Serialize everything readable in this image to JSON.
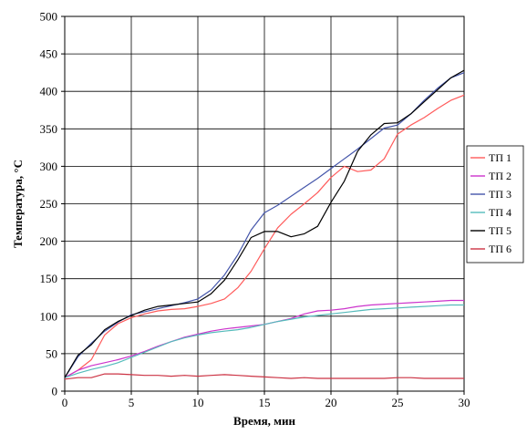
{
  "chart_data": {
    "type": "line",
    "title": "",
    "xlabel": "Время, мин",
    "ylabel": "Температура, °С",
    "xlim": [
      0,
      30
    ],
    "ylim": [
      0,
      500
    ],
    "x_ticks": [
      0,
      5,
      10,
      15,
      20,
      25,
      30
    ],
    "y_ticks": [
      0,
      50,
      100,
      150,
      200,
      250,
      300,
      350,
      400,
      450,
      500
    ],
    "grid": true,
    "legend_position": "right",
    "series": [
      {
        "name": "ТП 1",
        "color": "#ff5a5a",
        "points": [
          [
            0,
            18
          ],
          [
            1,
            28
          ],
          [
            2,
            42
          ],
          [
            3,
            75
          ],
          [
            4,
            90
          ],
          [
            5,
            98
          ],
          [
            6,
            103
          ],
          [
            7,
            107
          ],
          [
            8,
            109
          ],
          [
            9,
            110
          ],
          [
            10,
            113
          ],
          [
            11,
            117
          ],
          [
            12,
            123
          ],
          [
            13,
            138
          ],
          [
            14,
            160
          ],
          [
            15,
            190
          ],
          [
            16,
            218
          ],
          [
            17,
            236
          ],
          [
            18,
            250
          ],
          [
            19,
            265
          ],
          [
            20,
            285
          ],
          [
            21,
            300
          ],
          [
            22,
            293
          ],
          [
            23,
            295
          ],
          [
            24,
            310
          ],
          [
            25,
            343
          ],
          [
            26,
            355
          ],
          [
            27,
            365
          ],
          [
            28,
            377
          ],
          [
            29,
            388
          ],
          [
            30,
            395
          ]
        ]
      },
      {
        "name": "ТП 2",
        "color": "#cc33cc",
        "points": [
          [
            0,
            18
          ],
          [
            1,
            28
          ],
          [
            2,
            34
          ],
          [
            3,
            38
          ],
          [
            4,
            42
          ],
          [
            5,
            47
          ],
          [
            6,
            53
          ],
          [
            7,
            60
          ],
          [
            8,
            66
          ],
          [
            9,
            72
          ],
          [
            10,
            76
          ],
          [
            11,
            80
          ],
          [
            12,
            83
          ],
          [
            13,
            85
          ],
          [
            14,
            87
          ],
          [
            15,
            89
          ],
          [
            16,
            93
          ],
          [
            17,
            97
          ],
          [
            18,
            103
          ],
          [
            19,
            107
          ],
          [
            20,
            108
          ],
          [
            21,
            110
          ],
          [
            22,
            113
          ],
          [
            23,
            115
          ],
          [
            24,
            116
          ],
          [
            25,
            117
          ],
          [
            26,
            118
          ],
          [
            27,
            119
          ],
          [
            28,
            120
          ],
          [
            29,
            121
          ],
          [
            30,
            121
          ]
        ]
      },
      {
        "name": "ТП 3",
        "color": "#4455aa",
        "points": [
          [
            0,
            18
          ],
          [
            1,
            46
          ],
          [
            2,
            64
          ],
          [
            3,
            80
          ],
          [
            4,
            92
          ],
          [
            5,
            102
          ],
          [
            6,
            106
          ],
          [
            7,
            110
          ],
          [
            8,
            114
          ],
          [
            9,
            118
          ],
          [
            10,
            123
          ],
          [
            11,
            135
          ],
          [
            12,
            155
          ],
          [
            13,
            182
          ],
          [
            14,
            215
          ],
          [
            15,
            238
          ],
          [
            16,
            248
          ],
          [
            17,
            260
          ],
          [
            18,
            272
          ],
          [
            19,
            284
          ],
          [
            20,
            297
          ],
          [
            21,
            310
          ],
          [
            22,
            323
          ],
          [
            23,
            337
          ],
          [
            24,
            351
          ],
          [
            25,
            355
          ],
          [
            26,
            370
          ],
          [
            27,
            388
          ],
          [
            28,
            404
          ],
          [
            29,
            418
          ],
          [
            30,
            425
          ]
        ]
      },
      {
        "name": "ТП 4",
        "color": "#55bbbb",
        "points": [
          [
            0,
            18
          ],
          [
            1,
            24
          ],
          [
            2,
            29
          ],
          [
            3,
            33
          ],
          [
            4,
            38
          ],
          [
            5,
            45
          ],
          [
            6,
            52
          ],
          [
            7,
            59
          ],
          [
            8,
            66
          ],
          [
            9,
            71
          ],
          [
            10,
            75
          ],
          [
            11,
            78
          ],
          [
            12,
            80
          ],
          [
            13,
            82
          ],
          [
            14,
            85
          ],
          [
            15,
            89
          ],
          [
            16,
            93
          ],
          [
            17,
            96
          ],
          [
            18,
            99
          ],
          [
            19,
            101
          ],
          [
            20,
            103
          ],
          [
            21,
            105
          ],
          [
            22,
            107
          ],
          [
            23,
            109
          ],
          [
            24,
            110
          ],
          [
            25,
            111
          ],
          [
            26,
            112
          ],
          [
            27,
            113
          ],
          [
            28,
            114
          ],
          [
            29,
            115
          ],
          [
            30,
            115
          ]
        ]
      },
      {
        "name": "ТП 5",
        "color": "#000000",
        "points": [
          [
            0,
            18
          ],
          [
            1,
            48
          ],
          [
            2,
            62
          ],
          [
            3,
            82
          ],
          [
            4,
            93
          ],
          [
            5,
            101
          ],
          [
            6,
            108
          ],
          [
            7,
            113
          ],
          [
            8,
            115
          ],
          [
            9,
            117
          ],
          [
            10,
            119
          ],
          [
            11,
            130
          ],
          [
            12,
            148
          ],
          [
            13,
            175
          ],
          [
            14,
            205
          ],
          [
            15,
            213
          ],
          [
            16,
            213
          ],
          [
            17,
            206
          ],
          [
            18,
            210
          ],
          [
            19,
            220
          ],
          [
            20,
            252
          ],
          [
            21,
            280
          ],
          [
            22,
            320
          ],
          [
            23,
            342
          ],
          [
            24,
            357
          ],
          [
            25,
            358
          ],
          [
            26,
            370
          ],
          [
            27,
            386
          ],
          [
            28,
            402
          ],
          [
            29,
            418
          ],
          [
            30,
            428
          ]
        ]
      },
      {
        "name": "ТП 6",
        "color": "#cc3344",
        "points": [
          [
            0,
            16
          ],
          [
            1,
            18
          ],
          [
            2,
            18
          ],
          [
            3,
            23
          ],
          [
            4,
            23
          ],
          [
            5,
            22
          ],
          [
            6,
            21
          ],
          [
            7,
            21
          ],
          [
            8,
            20
          ],
          [
            9,
            21
          ],
          [
            10,
            20
          ],
          [
            11,
            21
          ],
          [
            12,
            22
          ],
          [
            13,
            21
          ],
          [
            14,
            20
          ],
          [
            15,
            19
          ],
          [
            16,
            18
          ],
          [
            17,
            17
          ],
          [
            18,
            18
          ],
          [
            19,
            17
          ],
          [
            20,
            17
          ],
          [
            21,
            17
          ],
          [
            22,
            17
          ],
          [
            23,
            17
          ],
          [
            24,
            17
          ],
          [
            25,
            18
          ],
          [
            26,
            18
          ],
          [
            27,
            17
          ],
          [
            28,
            17
          ],
          [
            29,
            17
          ],
          [
            30,
            17
          ]
        ]
      }
    ]
  }
}
